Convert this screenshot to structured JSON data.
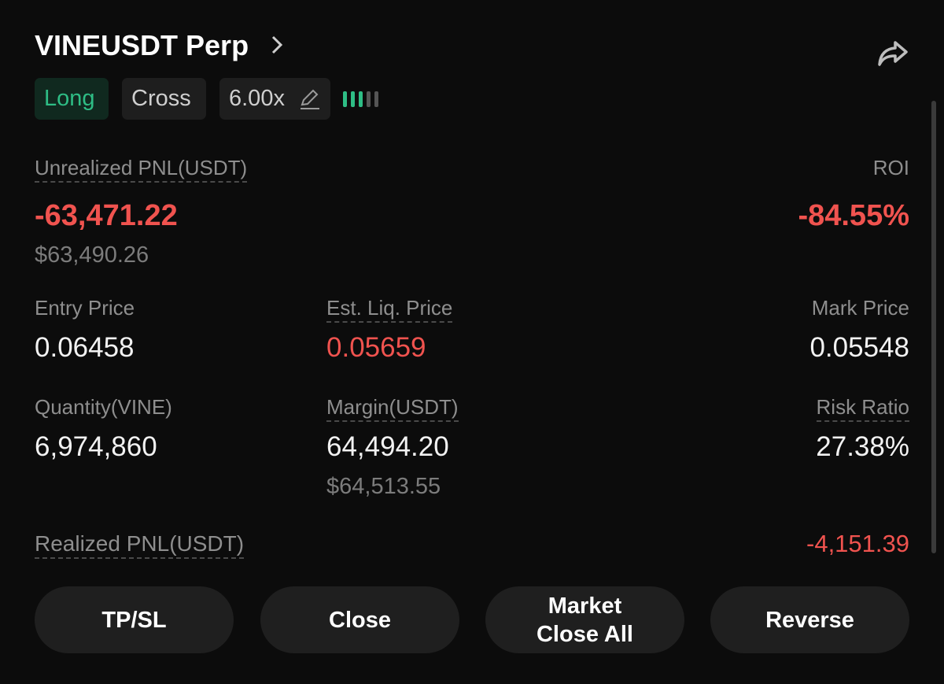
{
  "header": {
    "title": "VINEUSDT Perp"
  },
  "tags": {
    "side": "Long",
    "margin_mode": "Cross",
    "leverage": "6.00x"
  },
  "pnl": {
    "label": "Unrealized PNL(USDT)",
    "value": "-63,471.22",
    "usd_value": "$63,490.26",
    "roi_label": "ROI",
    "roi_value": "-84.55%"
  },
  "fields": [
    {
      "label": "Entry Price",
      "value": "0.06458"
    },
    {
      "label": "Est. Liq. Price",
      "value": "0.05659"
    },
    {
      "label": "Mark Price",
      "value": "0.05548"
    },
    {
      "label": "Quantity(VINE)",
      "value": "6,974,860"
    },
    {
      "label": "Margin(USDT)",
      "value": "64,494.20",
      "usd_value": "$64,513.55"
    },
    {
      "label": "Risk Ratio",
      "value": "27.38%"
    }
  ],
  "realized": {
    "label": "Realized PNL(USDT)",
    "value": "-4,151.39"
  },
  "buttons": [
    "TP/SL",
    "Close",
    "Market Close All",
    "Reverse"
  ]
}
